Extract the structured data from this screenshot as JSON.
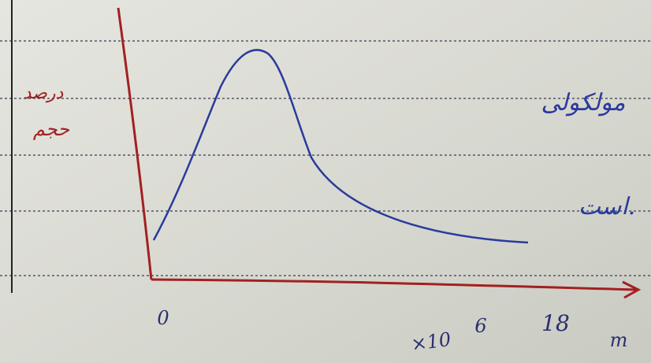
{
  "left_label": {
    "line1": "درصد",
    "line2": "حجم"
  },
  "right_label": {
    "line1": "مولکولی",
    "line2": "است."
  },
  "x_axis": {
    "origin": "0",
    "multiplier": "×10",
    "exponent": "6",
    "end": "18",
    "unit": "m"
  }
}
